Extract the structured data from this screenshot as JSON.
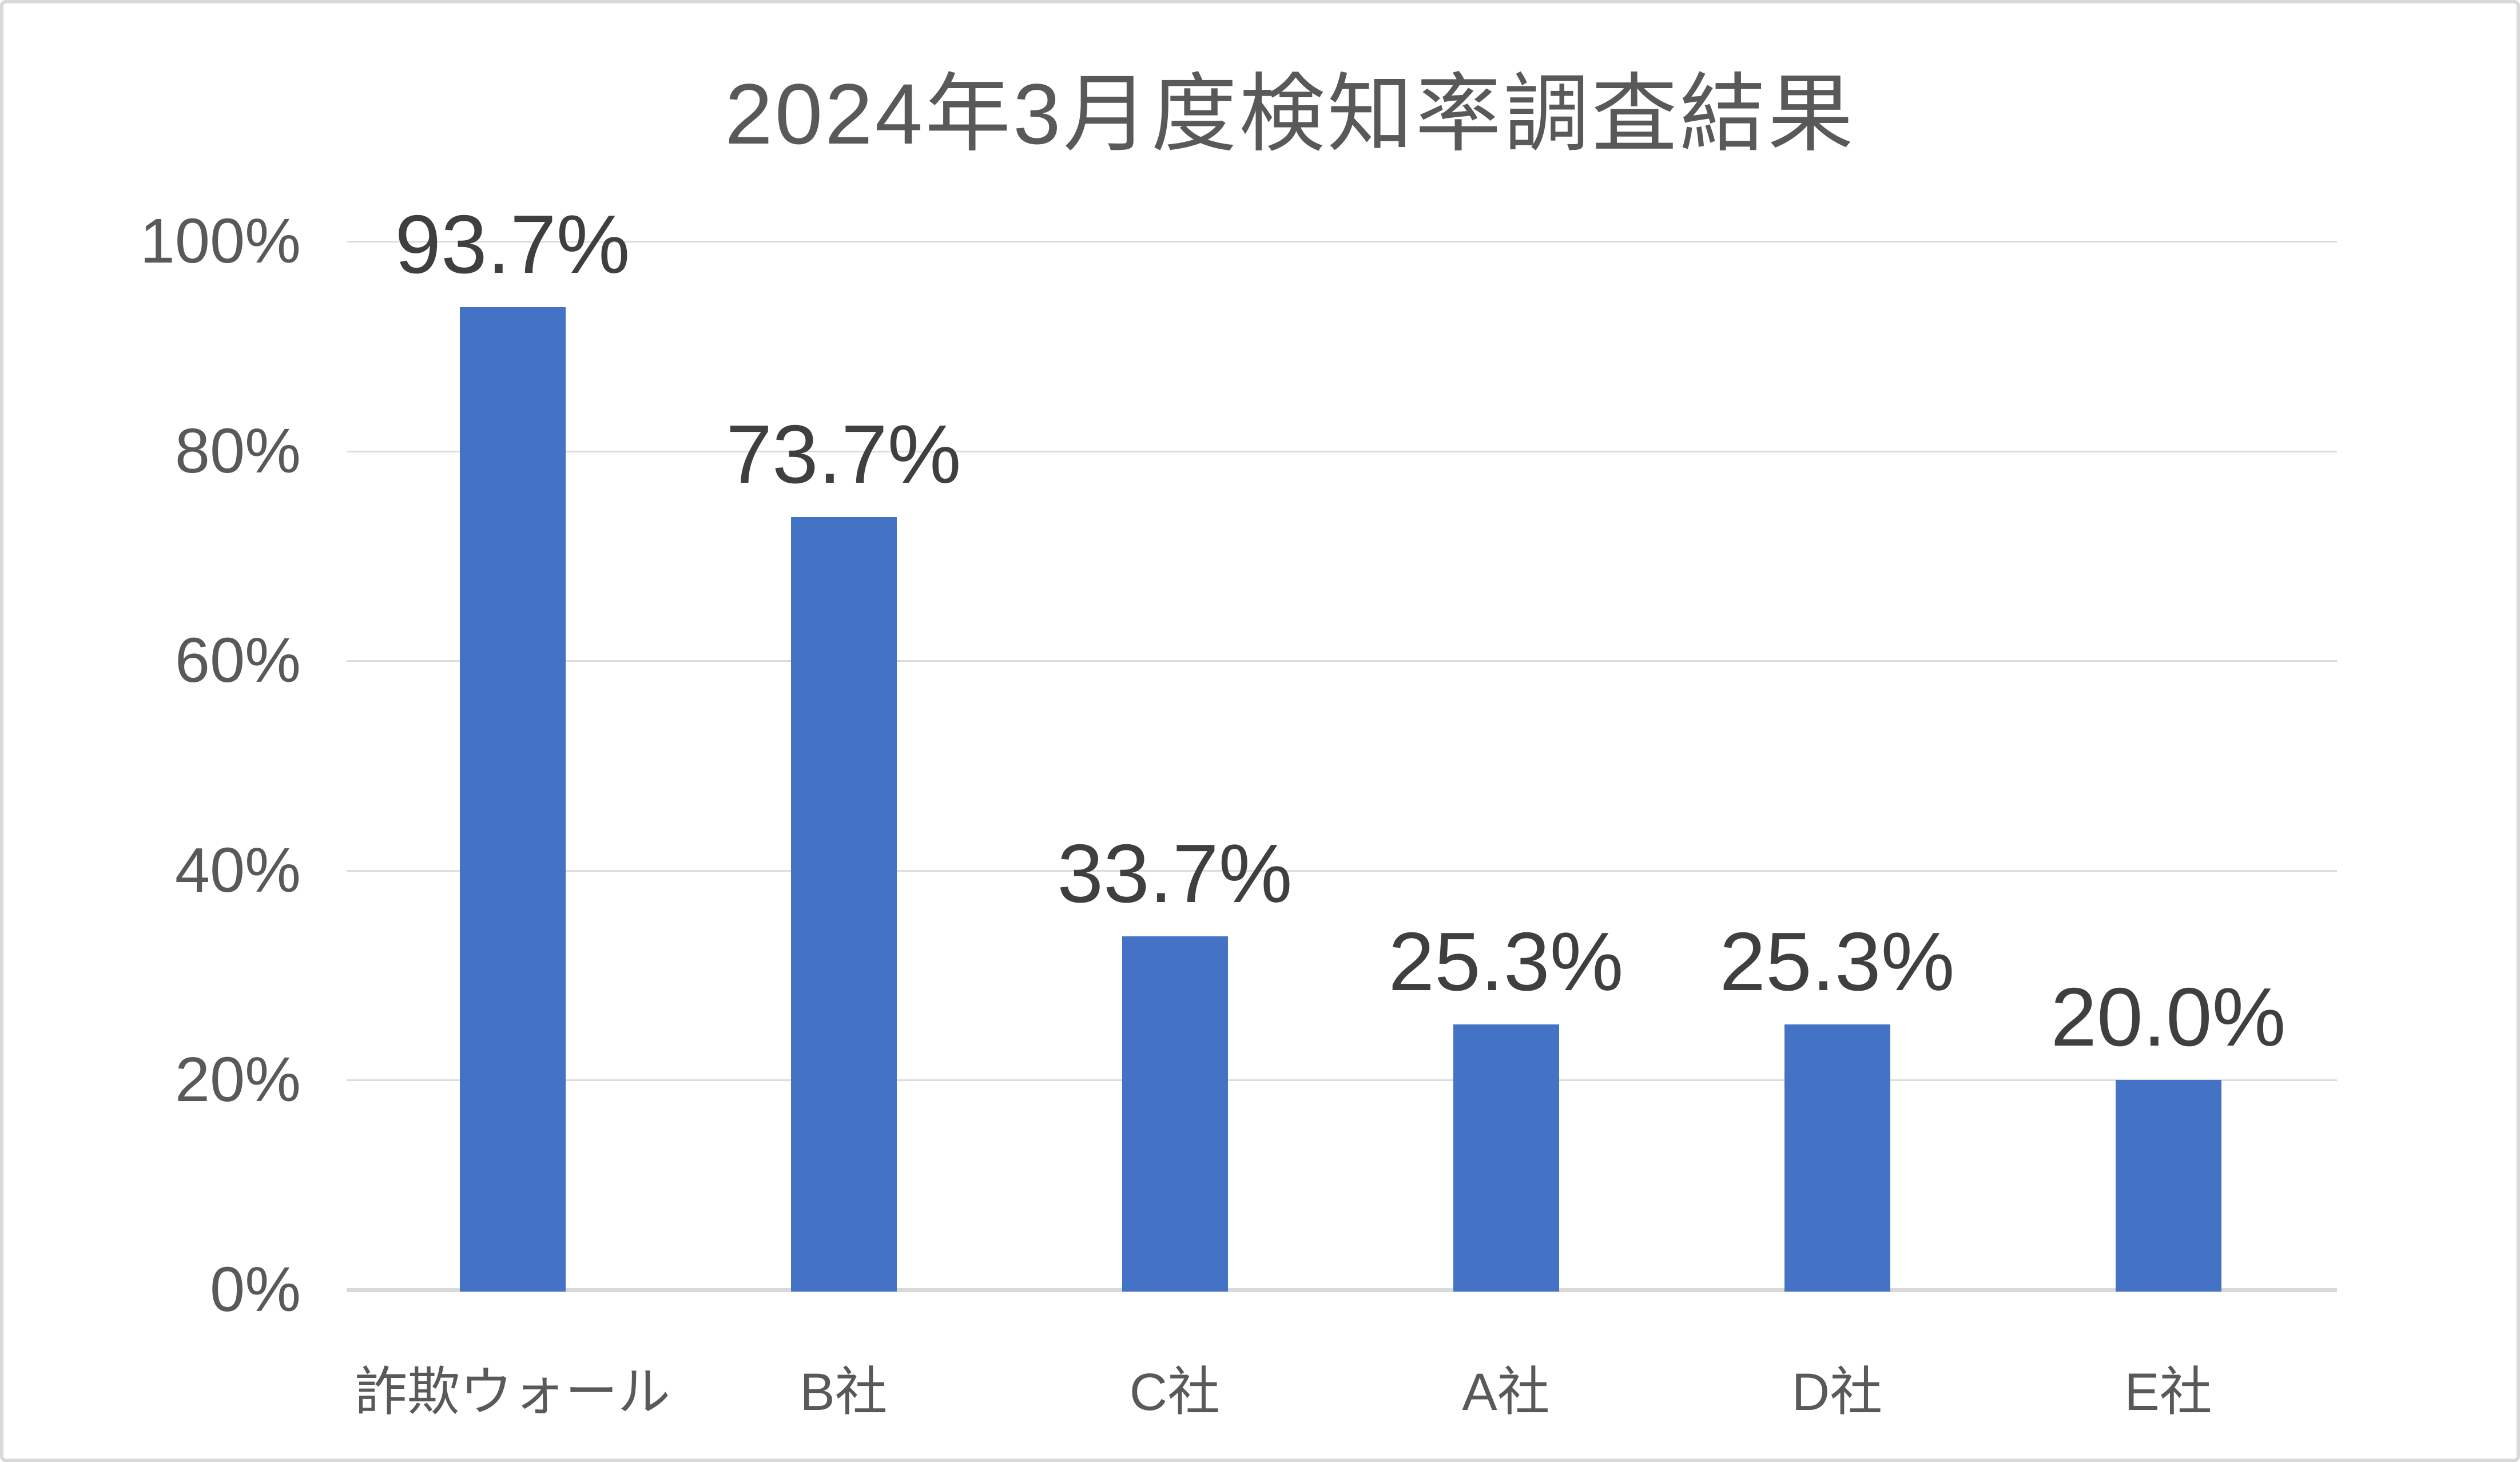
{
  "chart_data": {
    "type": "bar",
    "title": "2024年3月度検知率調査結果",
    "categories": [
      "詐欺ウォール",
      "B社",
      "C社",
      "A社",
      "D社",
      "E社"
    ],
    "values": [
      93.7,
      73.7,
      33.7,
      25.3,
      25.3,
      20.0
    ],
    "data_labels": [
      "93.7%",
      "73.7%",
      "33.7%",
      "25.3%",
      "25.3%",
      "20.0%"
    ],
    "xlabel": "",
    "ylabel": "",
    "ylim": [
      0,
      100
    ],
    "y_ticks": [
      {
        "label": "0%",
        "value": 0
      },
      {
        "label": "20%",
        "value": 20
      },
      {
        "label": "40%",
        "value": 40
      },
      {
        "label": "60%",
        "value": 60
      },
      {
        "label": "80%",
        "value": 80
      },
      {
        "label": "100%",
        "value": 100
      }
    ],
    "grid": true,
    "legend_position": "none",
    "colors": {
      "bar": "#4472c4",
      "gridline": "#dcdcdc",
      "axis_line": "#d9d9d9",
      "title_text": "#595959",
      "tick_text": "#595959",
      "category_text": "#595959",
      "value_label_text": "#3f3f3f",
      "frame_border": "#d9d9d9",
      "background": "#ffffff"
    }
  }
}
